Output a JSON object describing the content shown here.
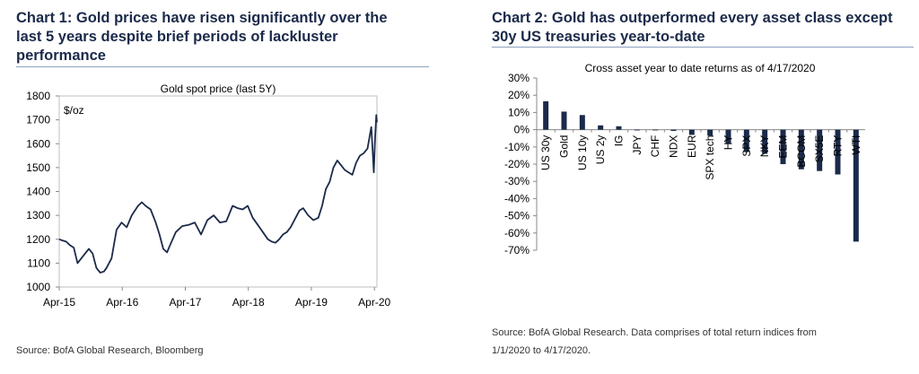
{
  "chart_data": [
    {
      "type": "line",
      "heading": "Chart 1: Gold prices have risen significantly over the last 5 years despite brief periods of lackluster performance",
      "title": "Gold spot price (last 5Y)",
      "ylabel": "$/oz",
      "xlabel": "",
      "ylim": [
        1000,
        1800
      ],
      "yticks": [
        "1000",
        "1100",
        "1200",
        "1300",
        "1400",
        "1500",
        "1600",
        "1700",
        "1800"
      ],
      "xticks": [
        "Apr-15",
        "Apr-16",
        "Apr-17",
        "Apr-18",
        "Apr-19",
        "Apr-20"
      ],
      "x": [
        2015.25,
        2015.3,
        2015.36,
        2015.42,
        2015.48,
        2015.54,
        2015.6,
        2015.66,
        2015.72,
        2015.78,
        2015.84,
        2015.9,
        2015.96,
        2016.0,
        2016.08,
        2016.16,
        2016.24,
        2016.32,
        2016.4,
        2016.5,
        2016.56,
        2016.62,
        2016.7,
        2016.78,
        2016.84,
        2016.9,
        2016.96,
        2017.0,
        2017.1,
        2017.2,
        2017.3,
        2017.4,
        2017.5,
        2017.6,
        2017.7,
        2017.8,
        2017.9,
        2018.0,
        2018.08,
        2018.16,
        2018.24,
        2018.32,
        2018.4,
        2018.48,
        2018.56,
        2018.62,
        2018.68,
        2018.74,
        2018.8,
        2018.86,
        2018.92,
        2019.0,
        2019.06,
        2019.12,
        2019.2,
        2019.28,
        2019.36,
        2019.42,
        2019.48,
        2019.54,
        2019.6,
        2019.66,
        2019.72,
        2019.78,
        2019.84,
        2019.9,
        2019.96,
        2020.02,
        2020.08,
        2020.14,
        2020.18,
        2020.2,
        2020.22,
        2020.24,
        2020.26,
        2020.28,
        2020.29
      ],
      "values": [
        1200,
        1195,
        1190,
        1175,
        1165,
        1100,
        1120,
        1140,
        1160,
        1140,
        1080,
        1060,
        1065,
        1080,
        1120,
        1240,
        1270,
        1250,
        1300,
        1340,
        1355,
        1340,
        1325,
        1270,
        1220,
        1160,
        1145,
        1170,
        1230,
        1255,
        1260,
        1270,
        1220,
        1280,
        1300,
        1270,
        1275,
        1340,
        1330,
        1325,
        1340,
        1290,
        1260,
        1230,
        1200,
        1190,
        1185,
        1200,
        1220,
        1230,
        1250,
        1290,
        1320,
        1330,
        1300,
        1280,
        1290,
        1340,
        1410,
        1440,
        1500,
        1530,
        1510,
        1490,
        1480,
        1470,
        1520,
        1550,
        1560,
        1580,
        1640,
        1670,
        1580,
        1480,
        1620,
        1720,
        1690
      ]
    },
    {
      "type": "bar",
      "heading": "Chart 2: Gold has outperformed every asset class except 30y US treasuries year-to-date",
      "title": "Cross asset year to date returns as of 4/17/2020",
      "xlabel": "",
      "ylabel": "",
      "ylim": [
        -70,
        30
      ],
      "yticks": [
        "30%",
        "20%",
        "10%",
        "0%",
        "-10%",
        "-20%",
        "-30%",
        "-40%",
        "-50%",
        "-60%",
        "-70%"
      ],
      "categories": [
        "US 30y",
        "Gold",
        "US 10y",
        "US 2y",
        "IG",
        "JPY",
        "CHF",
        "NDX",
        "EUR",
        "SPX tech",
        "HY",
        "SPX",
        "NKY",
        "EEM",
        "BCOM",
        "SX5E",
        "RTY",
        "WTI"
      ],
      "values": [
        16.5,
        10.5,
        8.5,
        2.5,
        2,
        0,
        -0.3,
        -0.7,
        -3,
        -3.5,
        -8,
        -13,
        -14,
        -20,
        -23,
        -24,
        -26,
        -65
      ]
    }
  ],
  "sources": {
    "chart1": "Source: BofA Global Research, Bloomberg",
    "chart2_line1": "Source: BofA Global Research. Data comprises of total return indices from",
    "chart2_line2": "1/1/2020 to 4/17/2020."
  },
  "colors": {
    "line": "#1b2a4a",
    "bar": "#1b2a4a",
    "heading": "#1b2a4a"
  }
}
